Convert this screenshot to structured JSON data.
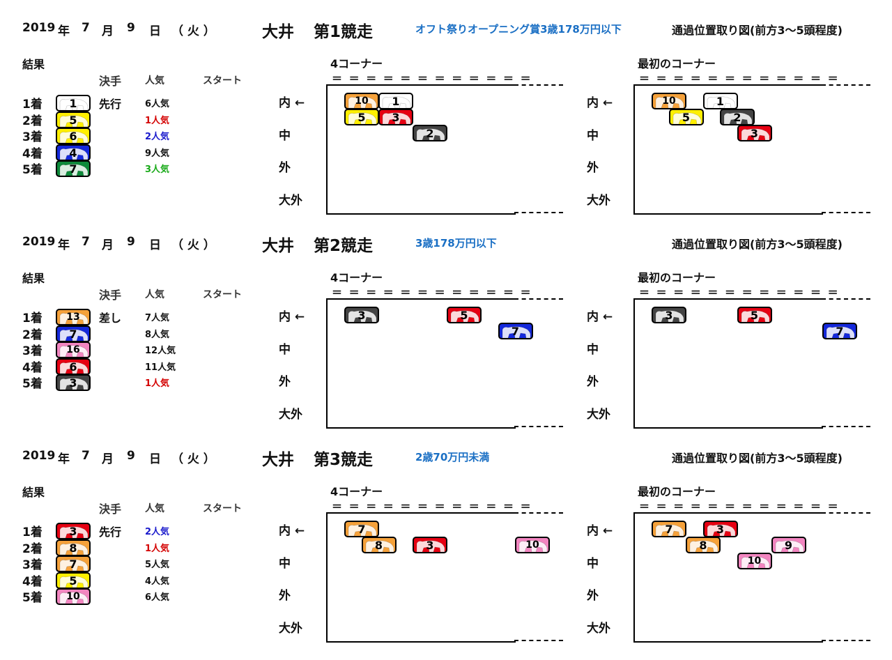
{
  "page": {
    "column_labels": {
      "result": "結果",
      "technique": "決手",
      "popularity": "人気",
      "start": "スタート"
    },
    "corner_labels": {
      "fourth": "4コーナー",
      "first": "最初のコーナー"
    },
    "lane_labels": {
      "inner": "内 ←",
      "middle": "中",
      "outer": "外",
      "far_outer": "大外"
    },
    "position_map_title": "通過位置取り図(前方3～5頭程度)",
    "rail_marks": "＝＝＝＝＝＝＝＝＝＝＝＝"
  },
  "colors": {
    "1": "#ffffff",
    "2": "#444444",
    "3": "#e60012",
    "4": "#1428dc",
    "5": "#ffef00",
    "6": "#0d8a3a",
    "7": "#f5a13a",
    "8": "#f285c0",
    "pop_red": "#d40000",
    "pop_blue": "#1a1acc",
    "pop_green": "#1aaa1a",
    "pop_black": "#111111"
  },
  "races": [
    {
      "date": {
        "year": "2019",
        "year_unit": "年",
        "month": "7",
        "month_unit": "月",
        "day": "9",
        "day_unit": "日",
        "weekday": "（ 火 ）"
      },
      "venue": "大井",
      "race_name": "第1競走",
      "condition": "オフト祭りオープニング賞3歳178万円以下",
      "technique": "先行",
      "results": [
        {
          "place": "1着",
          "horse": "1",
          "color": "1",
          "popularity": "6人気",
          "pop_color": "pop_black"
        },
        {
          "place": "2着",
          "horse": "5",
          "color": "5",
          "popularity": "1人気",
          "pop_color": "pop_red"
        },
        {
          "place": "3着",
          "horse": "6",
          "color": "5",
          "popularity": "2人気",
          "pop_color": "pop_blue"
        },
        {
          "place": "4着",
          "horse": "4",
          "color": "4",
          "popularity": "9人気",
          "pop_color": "pop_black"
        },
        {
          "place": "5着",
          "horse": "7",
          "color": "6",
          "popularity": "3人気",
          "pop_color": "pop_green"
        }
      ],
      "corner4": [
        {
          "horse": "10",
          "color": "7",
          "col": 0,
          "row": 0
        },
        {
          "horse": "1",
          "color": "1",
          "col": 2,
          "row": 0
        },
        {
          "horse": "5",
          "color": "5",
          "col": 0,
          "row": 1
        },
        {
          "horse": "3",
          "color": "3",
          "col": 2,
          "row": 1
        },
        {
          "horse": "2",
          "color": "2",
          "col": 4,
          "row": 2
        }
      ],
      "corner1": [
        {
          "horse": "10",
          "color": "7",
          "col": 0,
          "row": 0
        },
        {
          "horse": "1",
          "color": "1",
          "col": 3,
          "row": 0
        },
        {
          "horse": "5",
          "color": "5",
          "col": 1,
          "row": 1
        },
        {
          "horse": "2",
          "color": "2",
          "col": 4,
          "row": 1
        },
        {
          "horse": "3",
          "color": "3",
          "col": 5,
          "row": 2
        }
      ]
    },
    {
      "date": {
        "year": "2019",
        "year_unit": "年",
        "month": "7",
        "month_unit": "月",
        "day": "9",
        "day_unit": "日",
        "weekday": "（ 火 ）"
      },
      "venue": "大井",
      "race_name": "第2競走",
      "condition": "3歳178万円以下",
      "technique": "差し",
      "results": [
        {
          "place": "1着",
          "horse": "13",
          "color": "7",
          "popularity": "7人気",
          "pop_color": "pop_black"
        },
        {
          "place": "2着",
          "horse": "7",
          "color": "4",
          "popularity": "8人気",
          "pop_color": "pop_black"
        },
        {
          "place": "3着",
          "horse": "16",
          "color": "8",
          "popularity": "12人気",
          "pop_color": "pop_black"
        },
        {
          "place": "4着",
          "horse": "6",
          "color": "3",
          "popularity": "11人気",
          "pop_color": "pop_black"
        },
        {
          "place": "5着",
          "horse": "3",
          "color": "2",
          "popularity": "1人気",
          "pop_color": "pop_red"
        }
      ],
      "corner4": [
        {
          "horse": "3",
          "color": "2",
          "col": 0,
          "row": 0
        },
        {
          "horse": "5",
          "color": "3",
          "col": 6,
          "row": 0
        },
        {
          "horse": "7",
          "color": "4",
          "col": 9,
          "row": 1
        }
      ],
      "corner1": [
        {
          "horse": "3",
          "color": "2",
          "col": 0,
          "row": 0
        },
        {
          "horse": "5",
          "color": "3",
          "col": 5,
          "row": 0
        },
        {
          "horse": "7",
          "color": "4",
          "col": 10,
          "row": 1
        }
      ]
    },
    {
      "date": {
        "year": "2019",
        "year_unit": "年",
        "month": "7",
        "month_unit": "月",
        "day": "9",
        "day_unit": "日",
        "weekday": "（ 火 ）"
      },
      "venue": "大井",
      "race_name": "第3競走",
      "condition": "2歳70万円未満",
      "technique": "先行",
      "results": [
        {
          "place": "1着",
          "horse": "3",
          "color": "3",
          "popularity": "2人気",
          "pop_color": "pop_blue"
        },
        {
          "place": "2着",
          "horse": "8",
          "color": "7",
          "popularity": "1人気",
          "pop_color": "pop_red"
        },
        {
          "place": "3着",
          "horse": "7",
          "color": "7",
          "popularity": "5人気",
          "pop_color": "pop_black"
        },
        {
          "place": "4着",
          "horse": "5",
          "color": "5",
          "popularity": "4人気",
          "pop_color": "pop_black"
        },
        {
          "place": "5着",
          "horse": "10",
          "color": "8",
          "popularity": "6人気",
          "pop_color": "pop_black"
        }
      ],
      "corner4": [
        {
          "horse": "7",
          "color": "7",
          "col": 0,
          "row": 0
        },
        {
          "horse": "8",
          "color": "7",
          "col": 1,
          "row": 1
        },
        {
          "horse": "3",
          "color": "3",
          "col": 4,
          "row": 1
        },
        {
          "horse": "10",
          "color": "8",
          "col": 10,
          "row": 1
        }
      ],
      "corner1": [
        {
          "horse": "7",
          "color": "7",
          "col": 0,
          "row": 0
        },
        {
          "horse": "3",
          "color": "3",
          "col": 3,
          "row": 0
        },
        {
          "horse": "8",
          "color": "7",
          "col": 2,
          "row": 1
        },
        {
          "horse": "9",
          "color": "8",
          "col": 7,
          "row": 1
        },
        {
          "horse": "10",
          "color": "8",
          "col": 5,
          "row": 2
        }
      ]
    }
  ]
}
